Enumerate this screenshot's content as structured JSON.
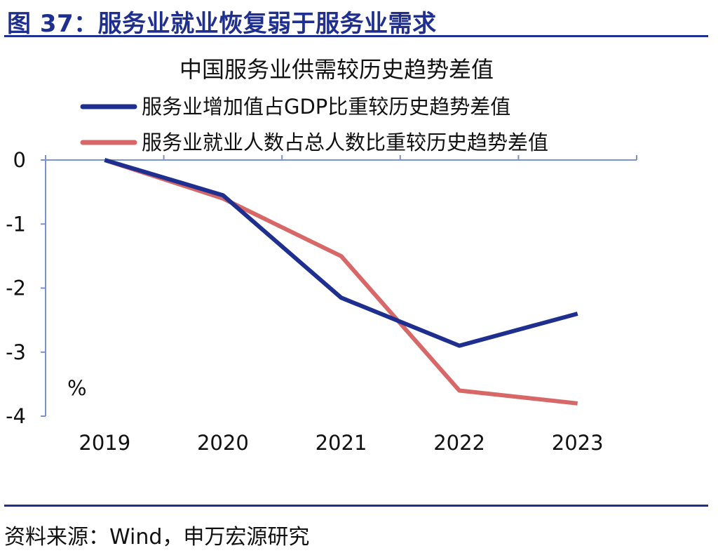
{
  "header": {
    "figure_title": "图 37：服务业就业恢复弱于服务业需求"
  },
  "footer": {
    "source": "资料来源：Wind，申万宏源研究"
  },
  "colors": {
    "brand": "#1f2f8f",
    "series_gdp": "#1f2f8f",
    "series_employment": "#d86868",
    "axis": "#7a93c8"
  },
  "chart_data": {
    "type": "line",
    "title": "中国服务业供需较历史趋势差值",
    "unit_label": "%",
    "xlabel": "",
    "ylabel": "",
    "categories": [
      "2019",
      "2020",
      "2021",
      "2022",
      "2023"
    ],
    "ylim": [
      -4,
      0
    ],
    "yticks": [
      0,
      -1,
      -2,
      -3,
      -4
    ],
    "ytick_labels": [
      "0",
      "-1",
      "-2",
      "-3",
      "-4"
    ],
    "legend_position": "top",
    "series": [
      {
        "name": "服务业增加值占GDP比重较历史趋势差值",
        "color": "#1f2f8f",
        "values": [
          0,
          -0.55,
          -2.15,
          -2.9,
          -2.4
        ]
      },
      {
        "name": "服务业就业人数占总人数比重较历史趋势差值",
        "color": "#d86868",
        "values": [
          0,
          -0.6,
          -1.5,
          -3.6,
          -3.8
        ]
      }
    ]
  }
}
